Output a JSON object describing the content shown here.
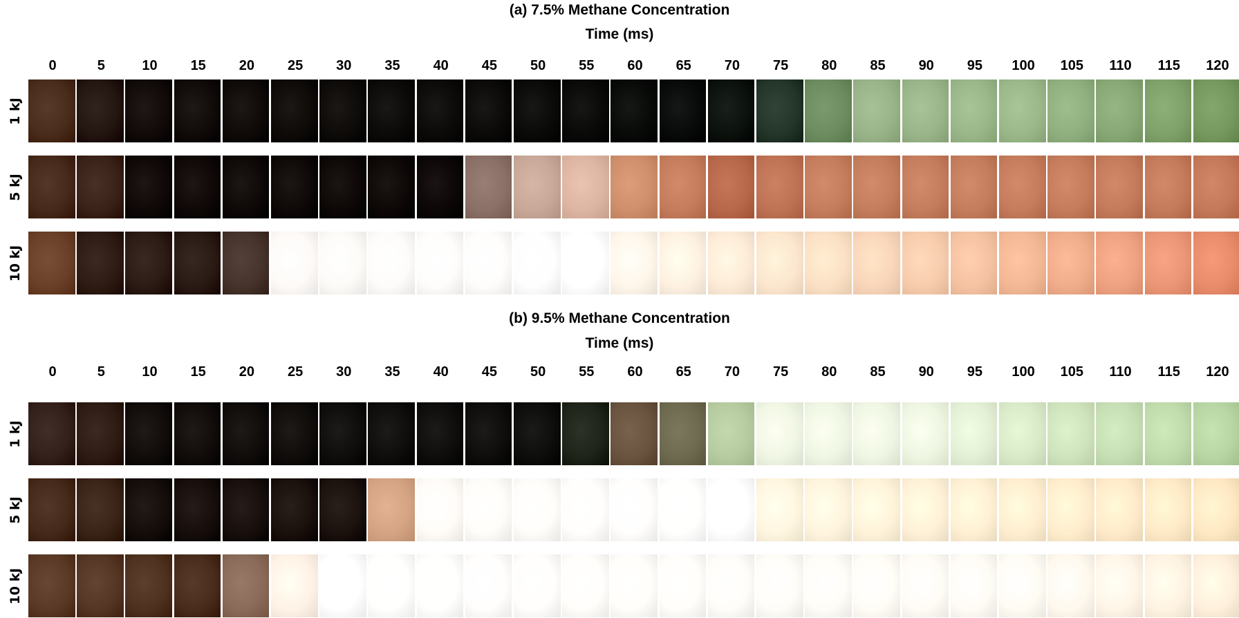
{
  "panels": [
    {
      "title": "(a) 7.5% Methane Concentration",
      "axis_label": "Time (ms)",
      "times": [
        0,
        5,
        10,
        15,
        20,
        25,
        30,
        35,
        40,
        45,
        50,
        55,
        60,
        65,
        70,
        75,
        80,
        85,
        90,
        95,
        100,
        105,
        110,
        115,
        120
      ],
      "row_labels": [
        "1 kJ",
        "5 kJ",
        "10 kJ"
      ]
    },
    {
      "title": "(b) 9.5% Methane Concentration",
      "axis_label": "Time (ms)",
      "times": [
        0,
        5,
        10,
        15,
        20,
        25,
        30,
        35,
        40,
        45,
        50,
        55,
        60,
        65,
        70,
        75,
        80,
        85,
        90,
        95,
        100,
        105,
        110,
        115,
        120
      ],
      "row_labels": [
        "1 kJ",
        "5 kJ",
        "10 kJ"
      ]
    }
  ]
}
